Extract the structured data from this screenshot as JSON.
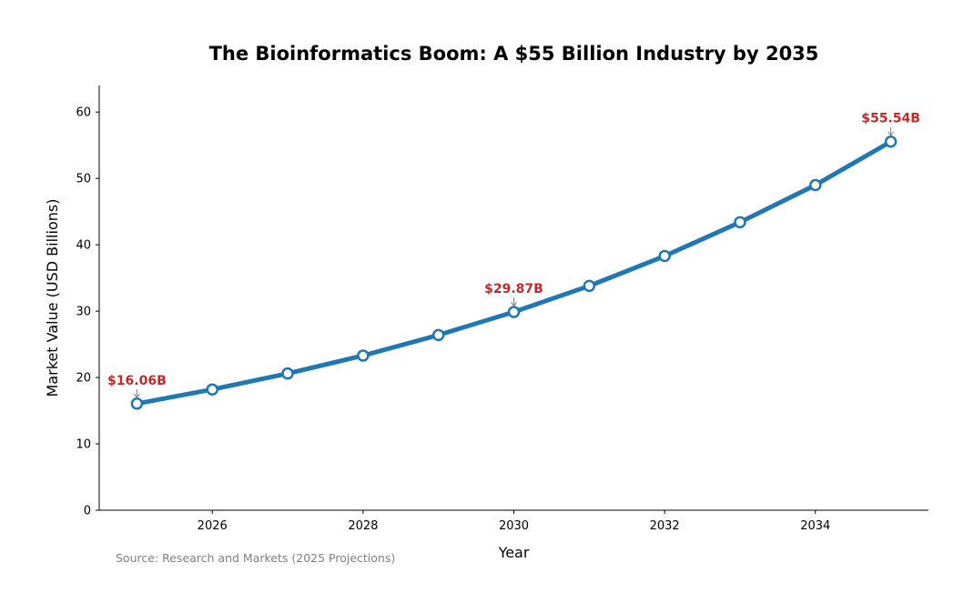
{
  "chart_data": {
    "type": "line",
    "title": "The Bioinformatics Boom: A $55 Billion Industry by 2035",
    "xlabel": "Year",
    "ylabel": "Market Value (USD Billions)",
    "x": [
      2025,
      2026,
      2027,
      2028,
      2029,
      2030,
      2031,
      2032,
      2033,
      2034,
      2035
    ],
    "series": [
      {
        "values": [
          16.06,
          18.2,
          20.6,
          23.3,
          26.4,
          29.87,
          33.8,
          38.3,
          43.4,
          49.0,
          55.54
        ]
      }
    ],
    "xlim": [
      2024.5,
      2035.5
    ],
    "ylim": [
      0,
      64
    ],
    "x_ticks": [
      2026,
      2028,
      2030,
      2032,
      2034
    ],
    "y_ticks": [
      0,
      10,
      20,
      30,
      40,
      50,
      60
    ],
    "grid": false,
    "annotations": [
      {
        "x": 2025,
        "y": 16.06,
        "text": "$16.06B"
      },
      {
        "x": 2030,
        "y": 29.87,
        "text": "$29.87B"
      },
      {
        "x": 2035,
        "y": 55.54,
        "text": "$55.54B"
      }
    ],
    "source_note": "Source: Research and Markets (2025 Projections)",
    "colors": {
      "line": "#1f77b4",
      "marker_fill": "#ffffff",
      "annotation": "#c62828",
      "arrow": "#808080",
      "source": "#808080"
    }
  }
}
